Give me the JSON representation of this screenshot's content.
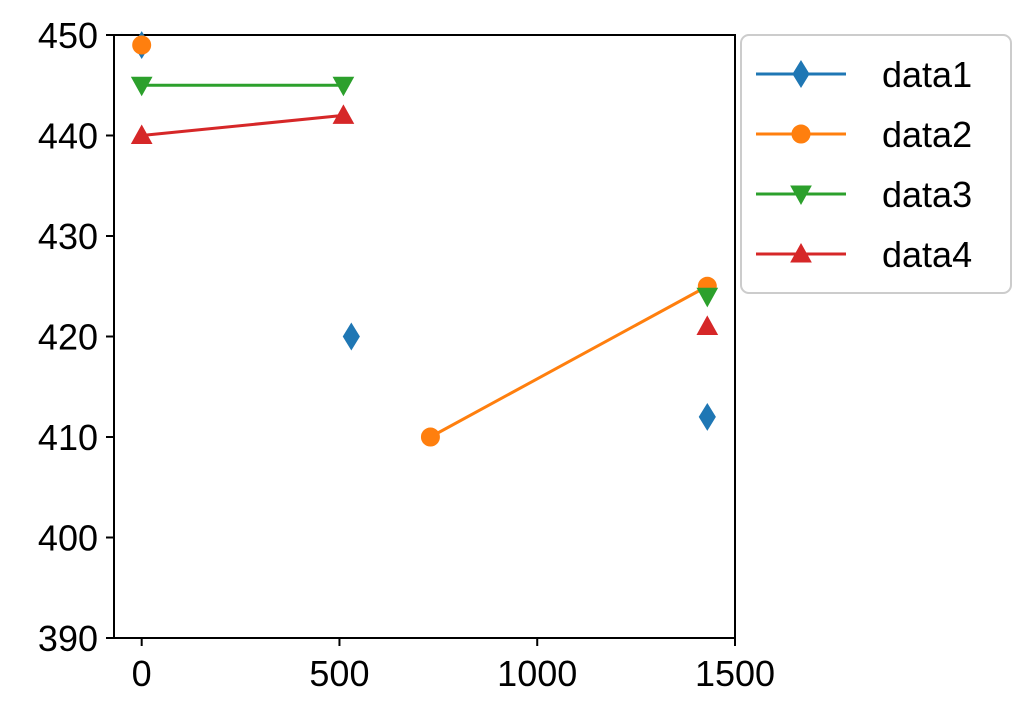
{
  "chart_data": {
    "type": "line",
    "title": "",
    "xlabel": "",
    "ylabel": "",
    "xlim": [
      -70,
      1500
    ],
    "ylim": [
      390,
      450
    ],
    "xticks": [
      0,
      500,
      1000,
      1500
    ],
    "yticks": [
      390,
      400,
      410,
      420,
      430,
      440,
      450
    ],
    "xtick_labels": [
      "0",
      "500",
      "1000",
      "1500"
    ],
    "ytick_labels": [
      "390",
      "400",
      "410",
      "420",
      "430",
      "440",
      "450"
    ],
    "grid": false,
    "legend_placement": "outside-top-right",
    "series": [
      {
        "name": "data1",
        "color": "#1f77b4",
        "marker": "thin-diamond",
        "points": [
          [
            0,
            449
          ],
          [
            530,
            420
          ],
          [
            1430,
            412
          ]
        ],
        "segments": []
      },
      {
        "name": "data2",
        "color": "#ff7f0e",
        "marker": "circle",
        "points": [
          [
            0,
            449
          ],
          [
            730,
            410
          ],
          [
            1430,
            425
          ]
        ],
        "segments": [
          [
            1,
            2
          ]
        ]
      },
      {
        "name": "data3",
        "color": "#2ca02c",
        "marker": "triangle-down",
        "points": [
          [
            0,
            445
          ],
          [
            510,
            445
          ],
          [
            1430,
            424
          ]
        ],
        "segments": [
          [
            0,
            1
          ]
        ]
      },
      {
        "name": "data4",
        "color": "#d62728",
        "marker": "triangle-up",
        "points": [
          [
            0,
            440
          ],
          [
            510,
            442
          ],
          [
            1430,
            421
          ]
        ],
        "segments": [
          [
            0,
            1
          ]
        ]
      }
    ]
  }
}
